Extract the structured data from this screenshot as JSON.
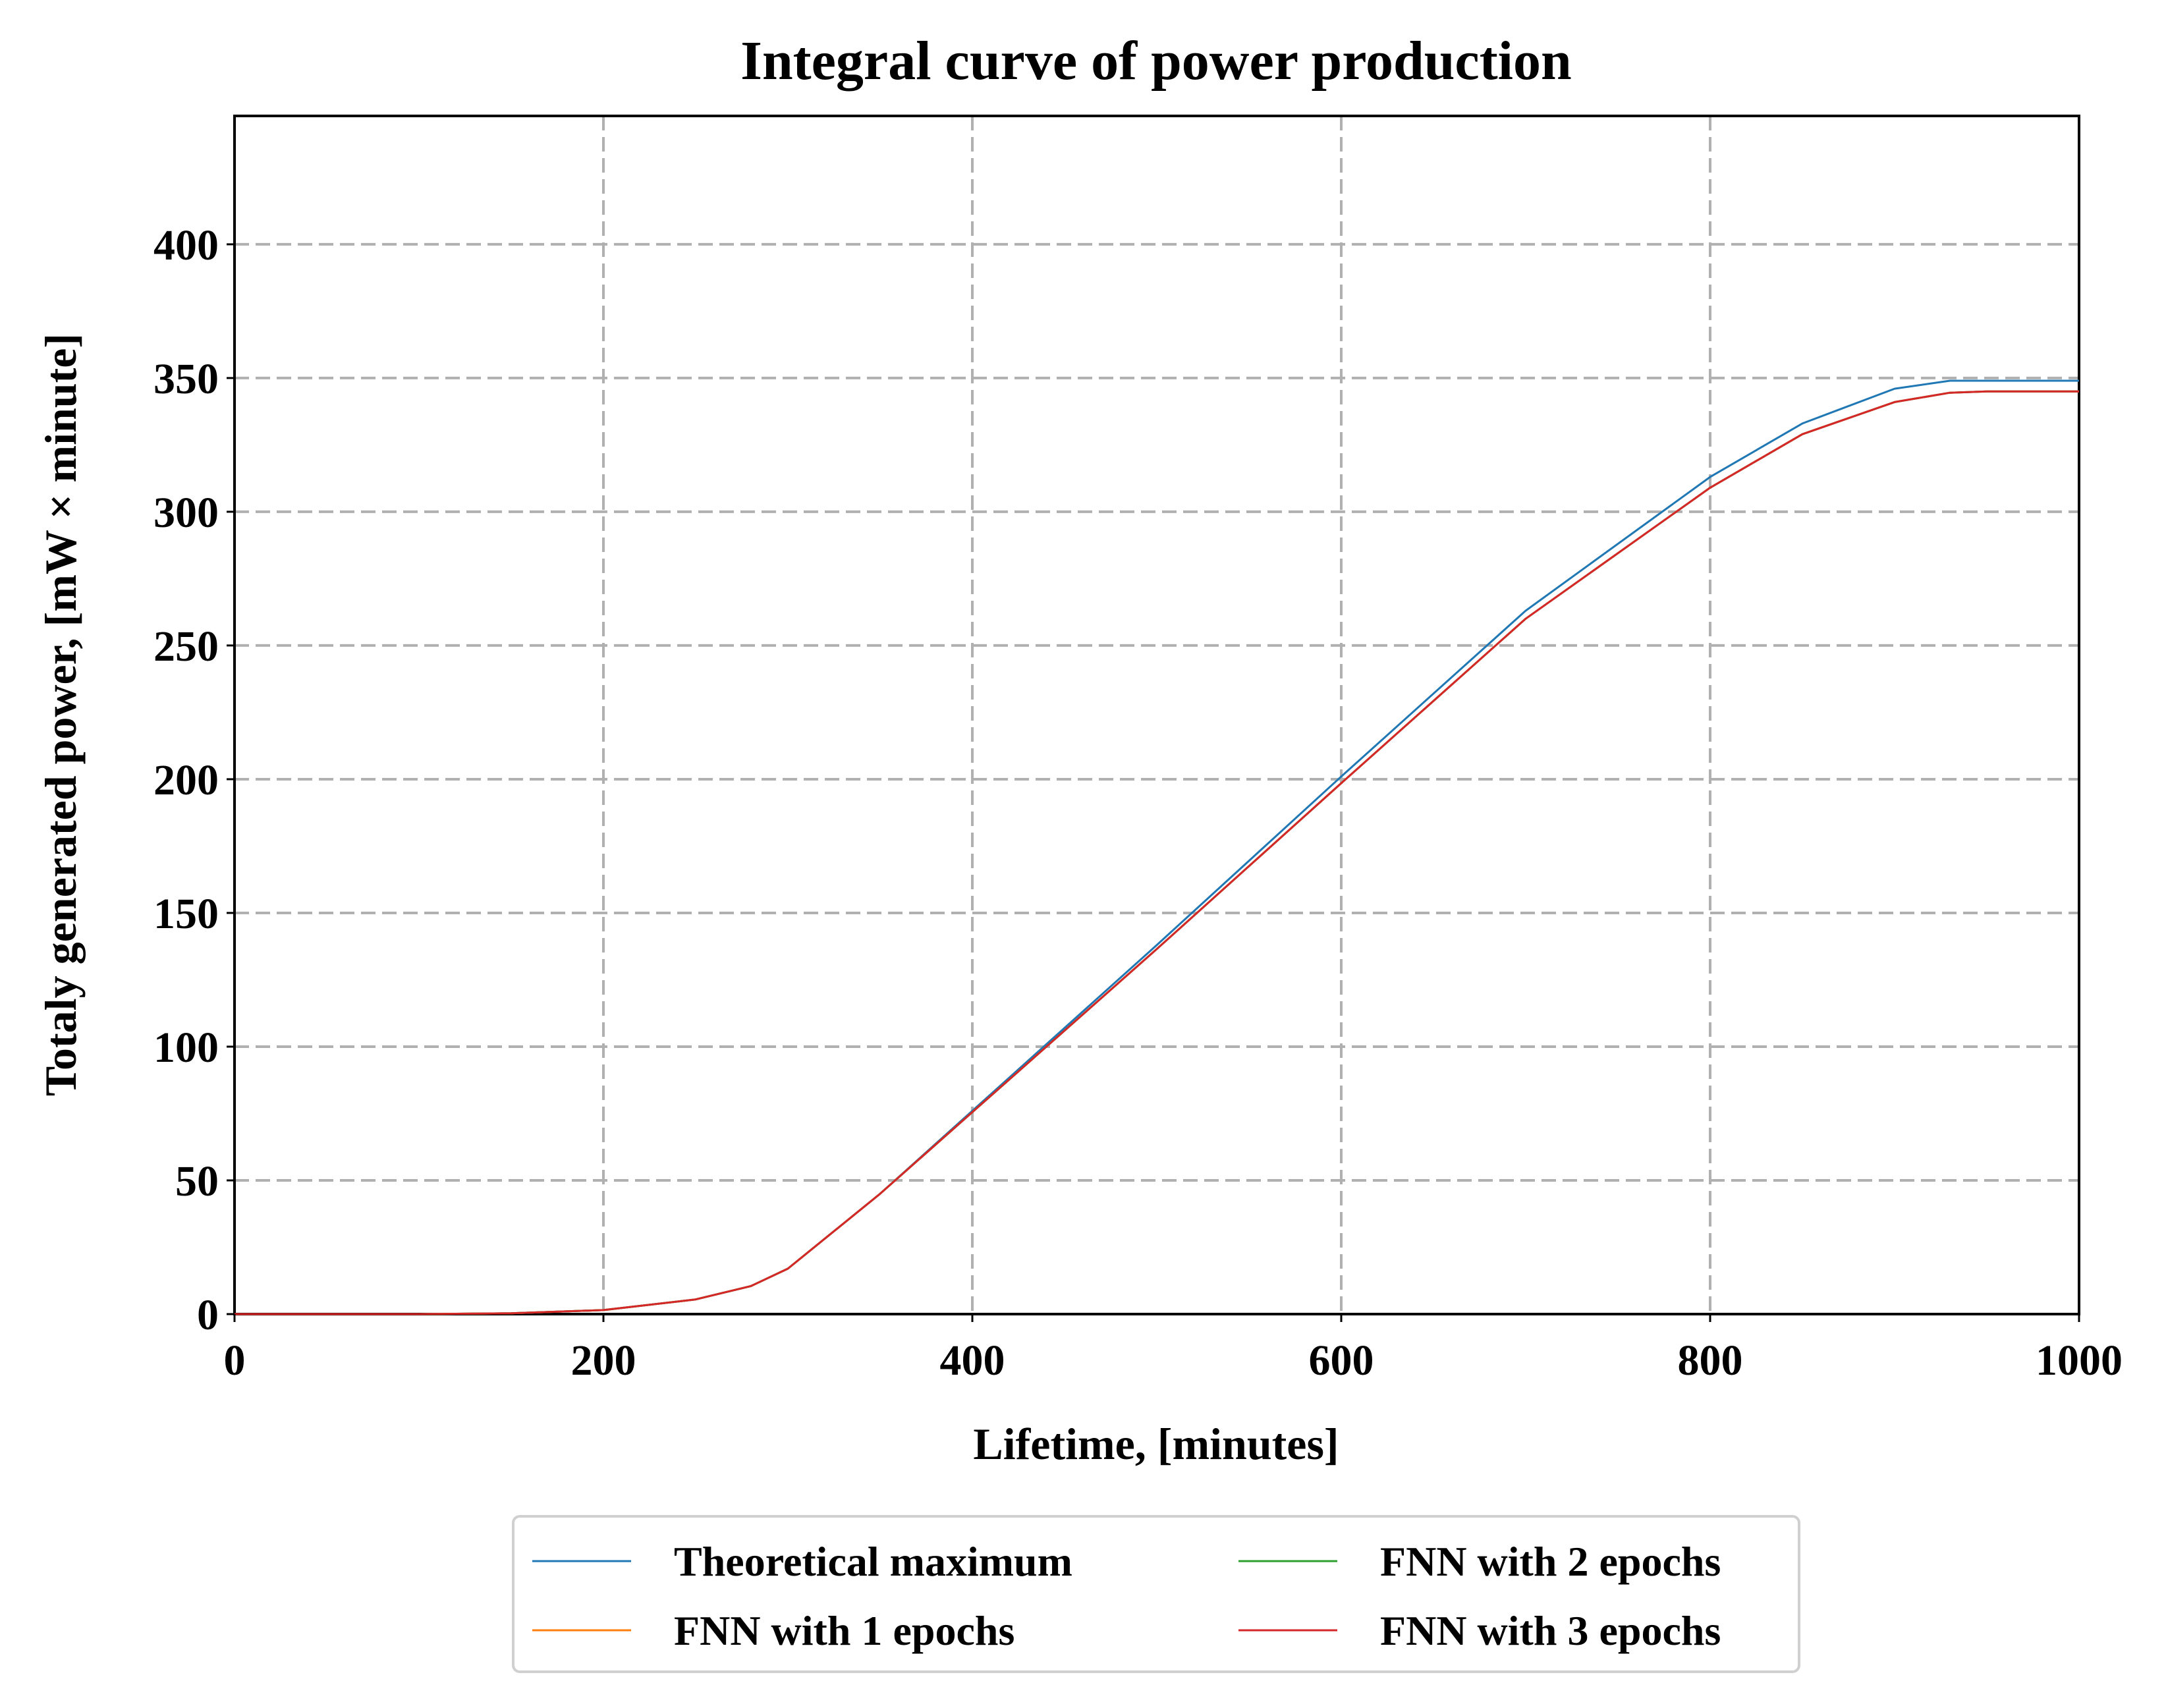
{
  "chart_data": {
    "type": "line",
    "title": "Integral curve of power production",
    "xlabel": "Lifetime, [minutes]",
    "ylabel": "Totaly generated power, [mW × minute]",
    "xlim": [
      0,
      1000
    ],
    "ylim": [
      0,
      448
    ],
    "xticks": [
      0,
      200,
      400,
      600,
      800,
      1000
    ],
    "yticks": [
      0,
      50,
      100,
      150,
      200,
      250,
      300,
      350,
      400
    ],
    "grid": true,
    "legend_position": "bottom-center",
    "x": [
      0,
      100,
      150,
      200,
      250,
      280,
      300,
      350,
      400,
      500,
      600,
      700,
      800,
      850,
      900,
      930,
      950,
      1000
    ],
    "series": [
      {
        "name": "Theoretical maximum",
        "color": "#1f77b4",
        "values": [
          0,
          0,
          0.3,
          1.5,
          5.5,
          10.5,
          17,
          45,
          76,
          138,
          201,
          263,
          313,
          333,
          346,
          349,
          349,
          349
        ]
      },
      {
        "name": "FNN with 1 epochs",
        "color": "#ff7f0e",
        "values": [
          0,
          0,
          0.3,
          1.5,
          5.5,
          10.5,
          17,
          45,
          75.5,
          136.5,
          198.5,
          260,
          309,
          329,
          341,
          344.5,
          345,
          345
        ]
      },
      {
        "name": "FNN with 2 epochs",
        "color": "#2ca02c",
        "values": [
          0,
          0,
          0.3,
          1.5,
          5.5,
          10.5,
          17,
          45,
          75.5,
          136.5,
          198.5,
          260,
          309,
          329,
          341,
          344.5,
          345,
          345
        ]
      },
      {
        "name": "FNN with 3 epochs",
        "color": "#d62728",
        "values": [
          0,
          0,
          0.3,
          1.5,
          5.5,
          10.5,
          17,
          45,
          75.5,
          136.5,
          198.5,
          260,
          309,
          329,
          341,
          344.5,
          345,
          345
        ]
      }
    ]
  }
}
